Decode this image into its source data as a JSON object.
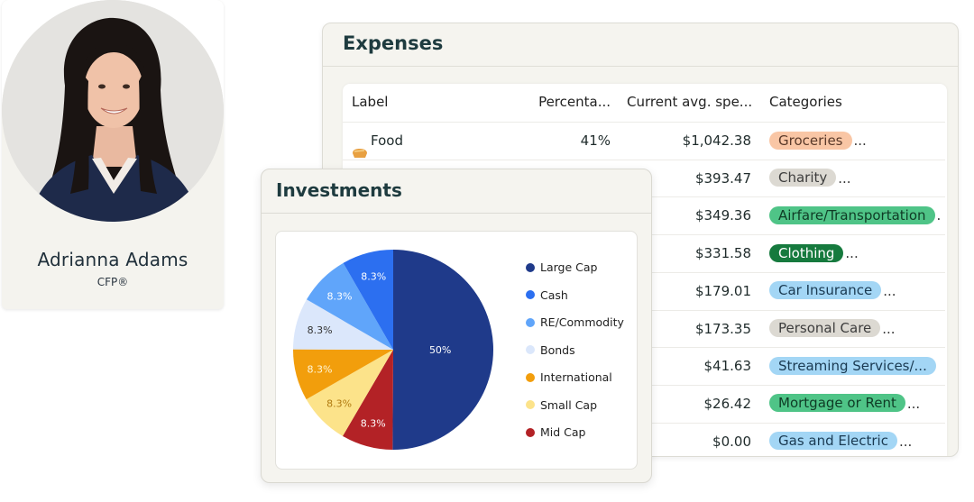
{
  "advisor": {
    "name": "Adrianna Adams",
    "credential": "CFP®"
  },
  "expenses": {
    "title": "Expenses",
    "columns": [
      "Label",
      "Percenta...",
      "Current avg. spe...",
      "Categories"
    ],
    "rows": [
      {
        "label": "Food",
        "icon": "bread-icon",
        "percent": "41%",
        "avg": "$1,042.38",
        "category": "Groceries",
        "chip_bg": "#f9c6a5",
        "chip_fg": "#5a3a2a",
        "more": "..."
      },
      {
        "label": "",
        "percent": "",
        "avg": "$393.47",
        "category": "Charity",
        "chip_bg": "#dcd9d2",
        "chip_fg": "#3d3d3d",
        "more": "..."
      },
      {
        "label": "",
        "percent": "",
        "avg": "$349.36",
        "category": "Airfare/Transportation",
        "chip_bg": "#4fc487",
        "chip_fg": "#0f3b25",
        "more": "."
      },
      {
        "label": "",
        "percent": "",
        "avg": "$331.58",
        "category": "Clothing",
        "chip_bg": "#167a3e",
        "chip_fg": "#ffffff",
        "more": "..."
      },
      {
        "label": "",
        "percent": "",
        "avg": "$179.01",
        "category": "Car Insurance",
        "chip_bg": "#a3d6f5",
        "chip_fg": "#1a3a52",
        "more": "..."
      },
      {
        "label": "",
        "percent": "",
        "avg": "$173.35",
        "category": "Personal Care",
        "chip_bg": "#dcd9d2",
        "chip_fg": "#3d3d3d",
        "more": "..."
      },
      {
        "label": "",
        "percent": "",
        "avg": "$41.63",
        "category": "Streaming Services/...",
        "chip_bg": "#a3d6f5",
        "chip_fg": "#1a3a52",
        "more": ""
      },
      {
        "label": "",
        "percent": "",
        "avg": "$26.42",
        "category": "Mortgage or Rent",
        "chip_bg": "#4fc487",
        "chip_fg": "#0f3b25",
        "more": "..."
      },
      {
        "label": "",
        "percent": "",
        "avg": "$0.00",
        "category": "Gas and Electric",
        "chip_bg": "#a3d6f5",
        "chip_fg": "#1a3a52",
        "more": "..."
      }
    ]
  },
  "investments": {
    "title": "Investments"
  },
  "chart_data": {
    "type": "pie",
    "title": "",
    "slices": [
      {
        "name": "Large Cap",
        "value": 50,
        "label": "50%",
        "color": "#1f3a8a",
        "text_color": "#ffffff"
      },
      {
        "name": "Mid Cap",
        "value": 8.3,
        "label": "8.3%",
        "color": "#b32226",
        "text_color": "#ffffff"
      },
      {
        "name": "Small Cap",
        "value": 8.3,
        "label": "8.3%",
        "color": "#fce38a",
        "text_color": "#b07a10"
      },
      {
        "name": "International",
        "value": 8.3,
        "label": "8.3%",
        "color": "#f29e0c",
        "text_color": "#fff6d8"
      },
      {
        "name": "Bonds",
        "value": 8.3,
        "label": "8.3%",
        "color": "#dbe7fb",
        "text_color": "#333333"
      },
      {
        "name": "RE/Commodity",
        "value": 8.3,
        "label": "8.3%",
        "color": "#60a5fa",
        "text_color": "#ffffff"
      },
      {
        "name": "Cash",
        "value": 8.3,
        "label": "8.3%",
        "color": "#2c6ff0",
        "text_color": "#ffffff"
      }
    ],
    "legend_order": [
      "Large Cap",
      "Cash",
      "RE/Commodity",
      "Bonds",
      "International",
      "Small Cap",
      "Mid Cap"
    ],
    "legend_position": "right"
  }
}
